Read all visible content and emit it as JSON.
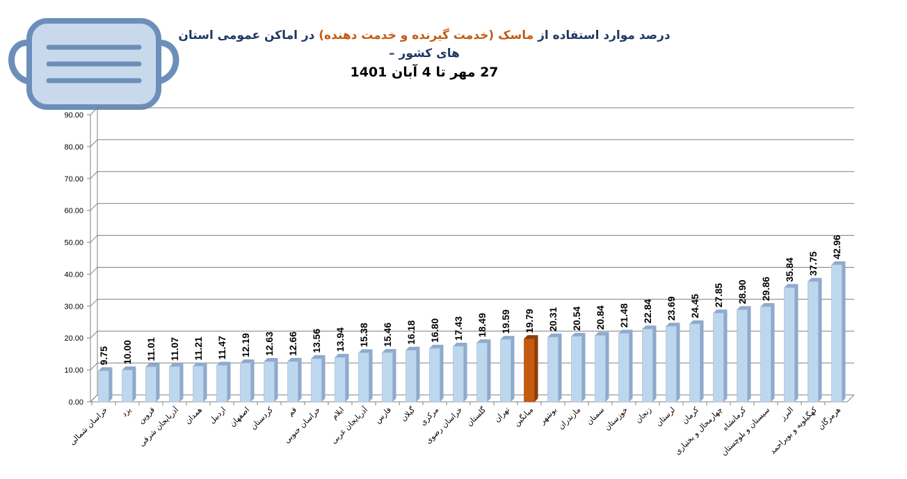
{
  "title": {
    "part1": "درصد موارد استفاده از ",
    "part2": "ماسک",
    "part3": " ",
    "part4": "(خدمت گیرنده و خدمت دهنده)",
    "part5": " در اماکن عمومی استان های کشور –",
    "line2": "27 مهر تا 4 آبان 1401"
  },
  "colors": {
    "bar": "#bdd7ee",
    "bar_side": "#8eaacc",
    "highlight": "#c55a11",
    "highlight_side": "#8a3d0b",
    "title": "#1f3864",
    "accent": "#c55a11",
    "mask": "#6b8fba"
  },
  "icons": {
    "mask": "face-mask-icon"
  },
  "chart_data": {
    "type": "bar",
    "title": "درصد موارد استفاده از ماسک (خدمت گیرنده و خدمت دهنده) در اماکن عمومی استان های کشور – 27 مهر تا 4 آبان 1401",
    "ylim": [
      0,
      90
    ],
    "yticks": [
      "0.00",
      "10.00",
      "20.00",
      "30.00",
      "40.00",
      "50.00",
      "60.00",
      "70.00",
      "80.00",
      "90.00"
    ],
    "grid": true,
    "highlight_index": 18,
    "categories": [
      "خراسان شمالی",
      "یزد",
      "قزوین",
      "آذربایجان شرقی",
      "همدان",
      "اردبیل",
      "اصفهان",
      "کردستان",
      "قم",
      "خراسان جنوبی",
      "ایلام",
      "آذربایجان غربی",
      "فارس",
      "گیلان",
      "مرکزی",
      "خراسان رضوی",
      "گلستان",
      "تهران",
      "میانگین",
      "بوشهر",
      "مازندران",
      "سمنان",
      "خوزستان",
      "زنجان",
      "لرستان",
      "کرمان",
      "چهارمحال و بختیاری",
      "کرمانشاه",
      "سیستان و بلوچستان",
      "البرز",
      "کهگیلویه و بویراحمد",
      "هرمزگان"
    ],
    "values": [
      9.75,
      10.0,
      11.01,
      11.07,
      11.21,
      11.47,
      12.19,
      12.63,
      12.66,
      13.56,
      13.94,
      15.38,
      15.46,
      16.18,
      16.8,
      17.43,
      18.49,
      19.59,
      19.79,
      20.31,
      20.54,
      20.84,
      21.48,
      22.84,
      23.69,
      24.45,
      27.85,
      28.9,
      29.86,
      35.84,
      37.75,
      42.96
    ],
    "value_labels": [
      "9.75",
      "10.00",
      "11.01",
      "11.07",
      "11.21",
      "11.47",
      "12.19",
      "12.63",
      "12.66",
      "13.56",
      "13.94",
      "15.38",
      "15.46",
      "16.18",
      "16.80",
      "17.43",
      "18.49",
      "19.59",
      "19.79",
      "20.31",
      "20.54",
      "20.84",
      "21.48",
      "22.84",
      "23.69",
      "24.45",
      "27.85",
      "28.90",
      "29.86",
      "35.84",
      "37.75",
      "42.96"
    ]
  }
}
